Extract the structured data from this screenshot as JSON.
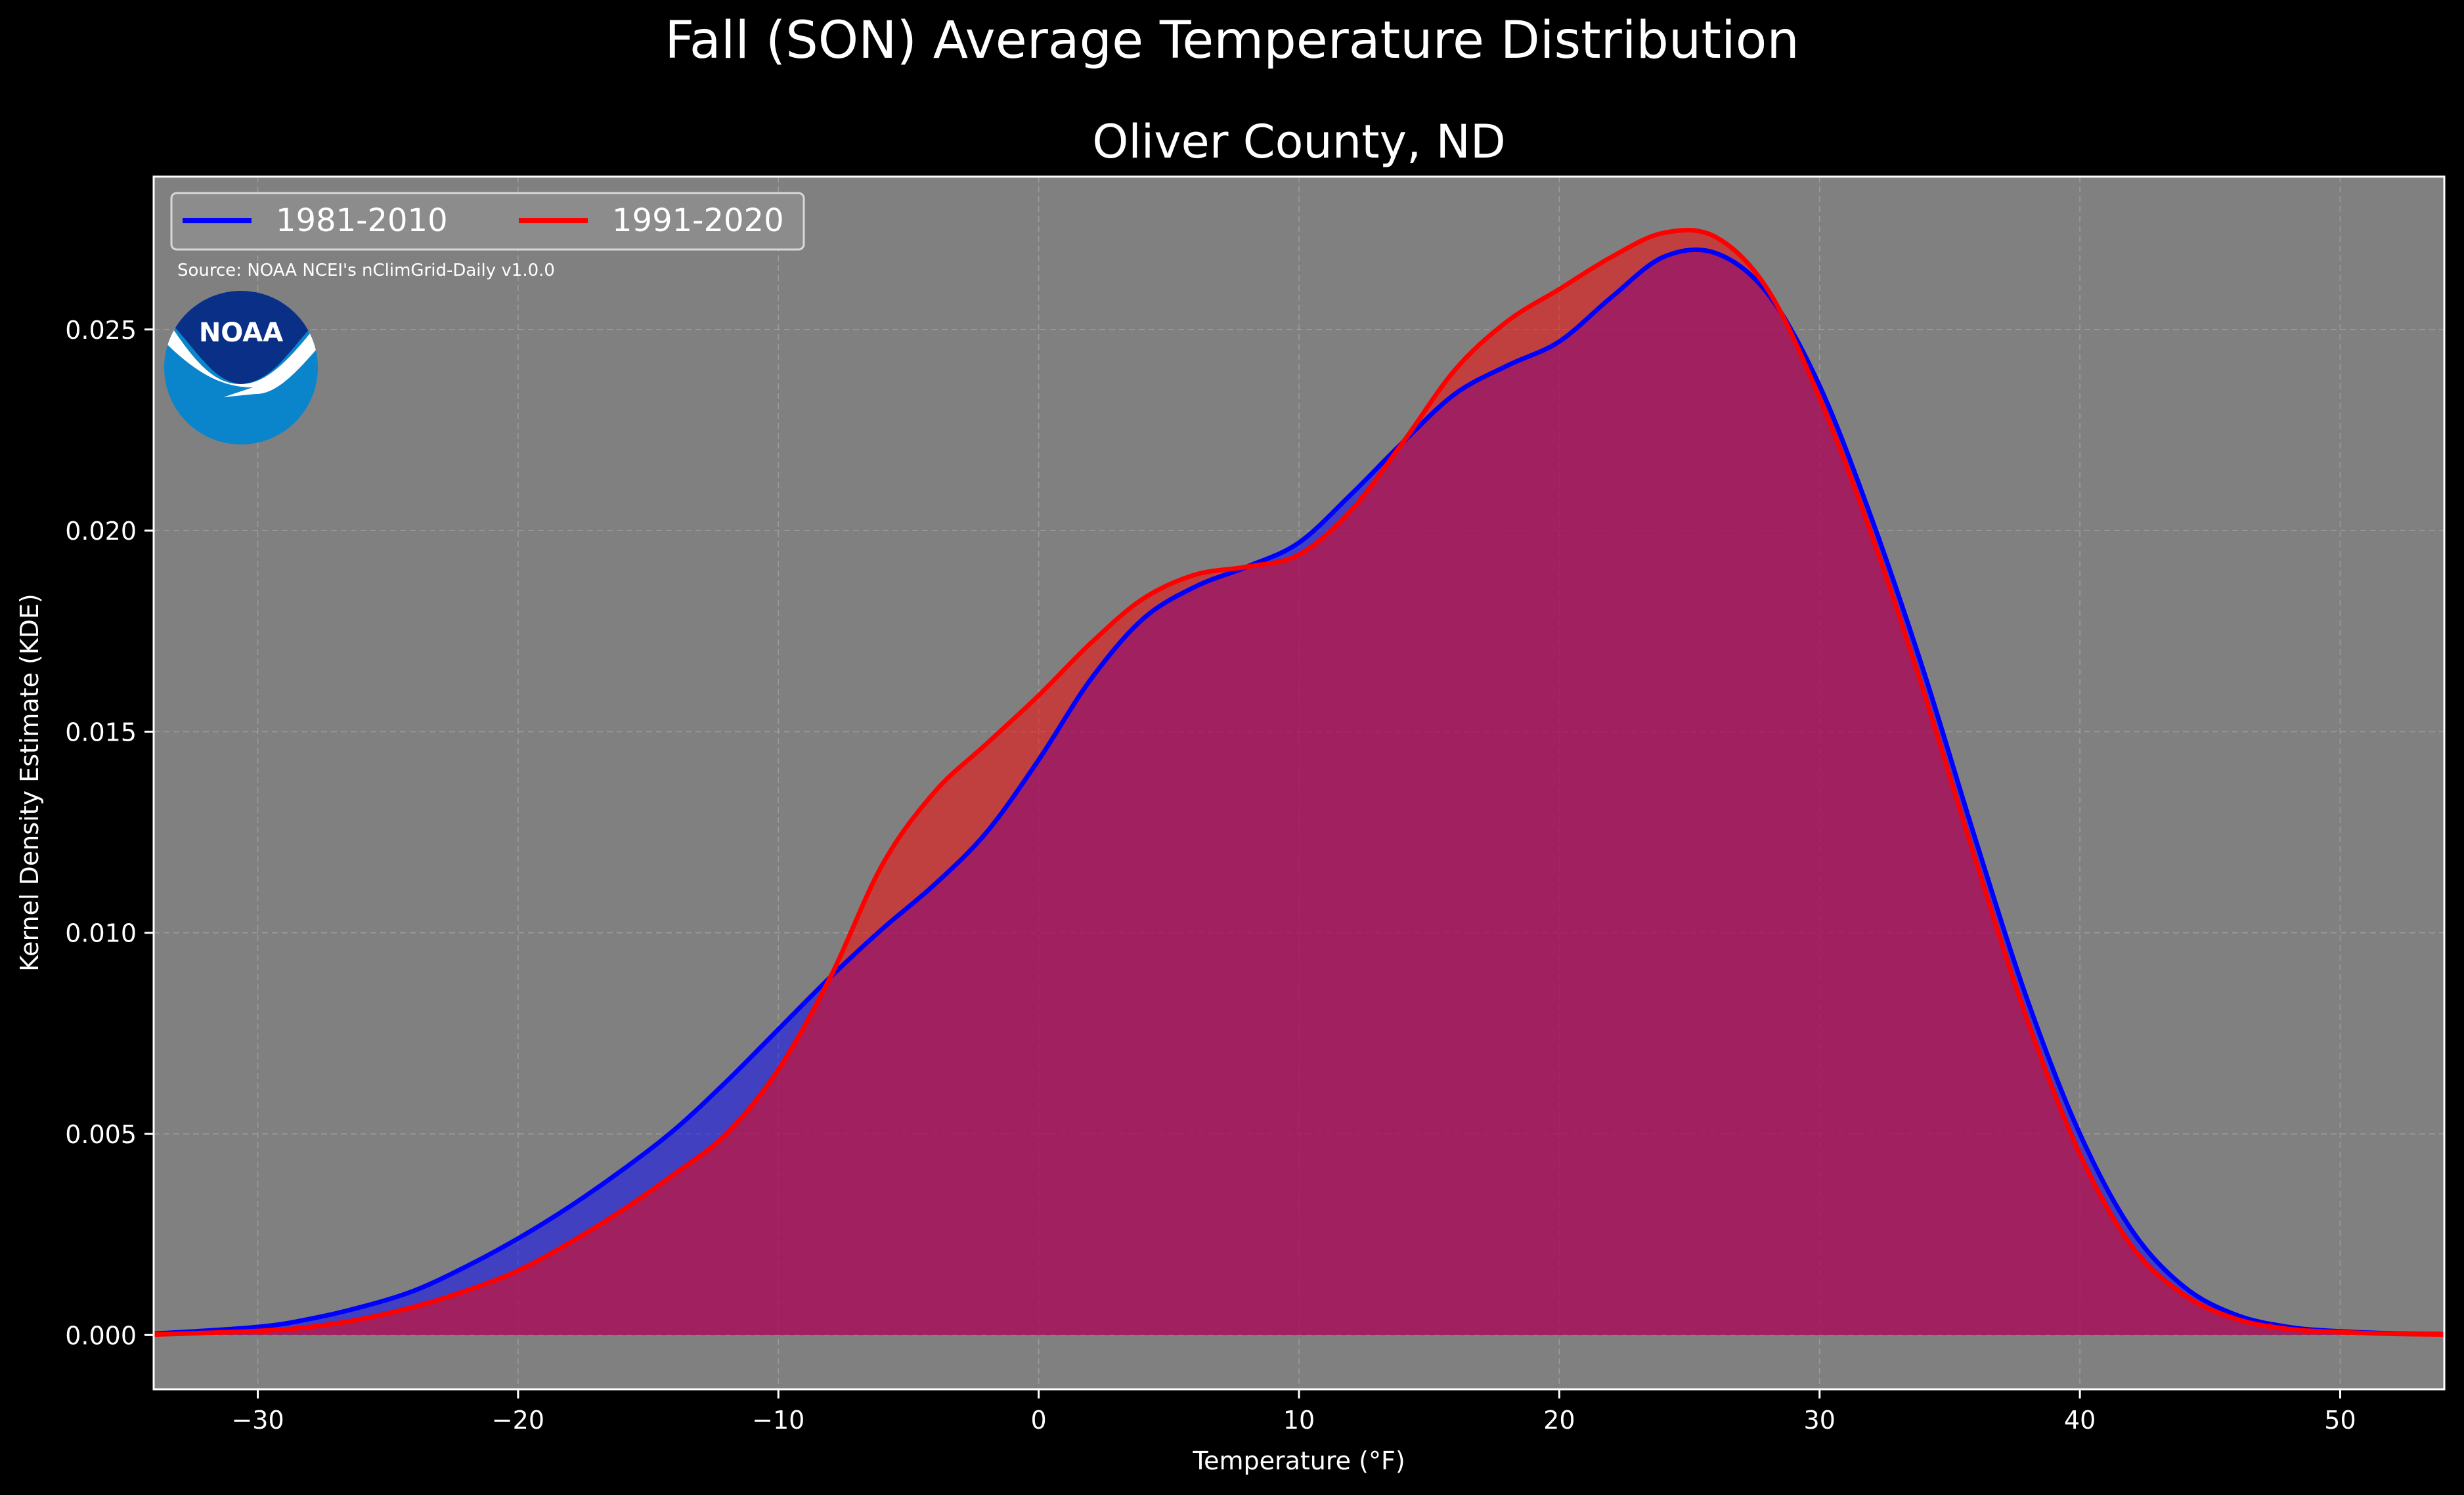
{
  "figure": {
    "suptitle": "Fall (SON) Average Temperature Distribution",
    "title": "Oliver County, ND",
    "source": "Source: NOAA NCEI's nClimGrid-Daily v1.0.0",
    "logo_text": "NOAA"
  },
  "colors": {
    "background": "#000000",
    "plot_background": "#808080",
    "series_1981": "#0000ff",
    "series_1991": "#ff0000",
    "overlap_fill": "#9c1f5e",
    "logo_dark": "#0a2f86",
    "logo_light": "#0a85cc"
  },
  "chart_data": {
    "type": "area",
    "title": "Oliver County, ND",
    "xlabel": "Temperature (°F)",
    "ylabel": "Kernel Density Estimate (KDE)",
    "xlim": [
      -34,
      54
    ],
    "ylim": [
      -0.00135,
      0.0288
    ],
    "xticks": [
      -30,
      -20,
      -10,
      0,
      10,
      20,
      30,
      40,
      50
    ],
    "xtick_labels": [
      "−30",
      "−20",
      "−10",
      "0",
      "10",
      "20",
      "30",
      "40",
      "50"
    ],
    "yticks": [
      0.0,
      0.005,
      0.01,
      0.015,
      0.02,
      0.025
    ],
    "ytick_labels": [
      "0.000",
      "0.005",
      "0.010",
      "0.015",
      "0.020",
      "0.025"
    ],
    "grid": true,
    "legend_position": "upper-left",
    "series": [
      {
        "name": "1981-2010",
        "color": "#0000ff",
        "x": [
          -34,
          -30,
          -28,
          -26,
          -24,
          -22,
          -20,
          -18,
          -16,
          -14,
          -12,
          -10,
          -8,
          -6,
          -4,
          -2,
          0,
          2,
          4,
          6,
          8,
          10,
          12,
          14,
          16,
          18,
          20,
          22,
          24,
          26,
          28,
          30,
          32,
          34,
          36,
          38,
          40,
          42,
          44,
          46,
          48,
          50,
          52,
          54
        ],
        "values": [
          3e-05,
          0.0002,
          0.0004,
          0.0007,
          0.0011,
          0.0017,
          0.0024,
          0.0032,
          0.0041,
          0.0051,
          0.0063,
          0.0076,
          0.0089,
          0.0101,
          0.0112,
          0.0125,
          0.0143,
          0.0163,
          0.0178,
          0.0186,
          0.0191,
          0.0197,
          0.0209,
          0.0222,
          0.0234,
          0.0241,
          0.0247,
          0.0258,
          0.0268,
          0.0269,
          0.0259,
          0.0236,
          0.0203,
          0.0165,
          0.0123,
          0.0083,
          0.005,
          0.0026,
          0.0012,
          0.0005,
          0.0002,
          9e-05,
          4e-05,
          2e-05
        ]
      },
      {
        "name": "1991-2020",
        "color": "#ff0000",
        "x": [
          -34,
          -30,
          -28,
          -26,
          -24,
          -22,
          -20,
          -18,
          -16,
          -14,
          -12,
          -10,
          -8,
          -6,
          -4,
          -2,
          0,
          2,
          4,
          6,
          8,
          10,
          12,
          14,
          16,
          18,
          20,
          22,
          24,
          26,
          28,
          30,
          32,
          34,
          36,
          38,
          40,
          42,
          44,
          46,
          48,
          50,
          52,
          54
        ],
        "values": [
          1e-05,
          0.0001,
          0.0002,
          0.0004,
          0.0007,
          0.0011,
          0.0016,
          0.0023,
          0.0031,
          0.004,
          0.005,
          0.0066,
          0.0089,
          0.0117,
          0.0135,
          0.0147,
          0.0159,
          0.0172,
          0.0183,
          0.0189,
          0.0191,
          0.0194,
          0.0205,
          0.0222,
          0.024,
          0.0252,
          0.026,
          0.0268,
          0.0274,
          0.0273,
          0.026,
          0.0233,
          0.0199,
          0.016,
          0.0118,
          0.0078,
          0.0045,
          0.0022,
          0.001,
          0.0004,
          0.00015,
          7e-05,
          3e-05,
          1e-05
        ]
      }
    ]
  }
}
